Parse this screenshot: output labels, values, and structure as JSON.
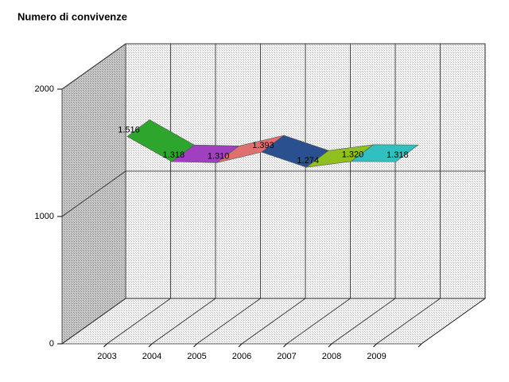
{
  "chart_data": {
    "type": "ribbon3d",
    "title": "Numero di convivenze",
    "categories": [
      "2003",
      "2004",
      "2005",
      "2006",
      "2007",
      "2008",
      "2009"
    ],
    "values": [
      1516,
      1318,
      1310,
      1393,
      1274,
      1320,
      1318
    ],
    "value_labels": [
      "1.516",
      "1.318",
      "1.310",
      "1.393",
      "1.274",
      "1.320",
      "1.318"
    ],
    "segment_colors": [
      "#2ea62e",
      "#a040c0",
      "#e07070",
      "#2a5090",
      "#90c020",
      "#30c0c0"
    ],
    "ylim": [
      0,
      2000
    ],
    "yticks": [
      0,
      1000,
      2000
    ],
    "grid": true
  }
}
